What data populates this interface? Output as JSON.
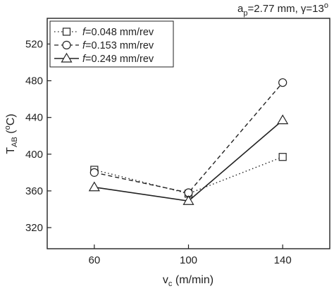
{
  "chart_data": {
    "type": "line",
    "annotation": {
      "a_main": "a",
      "a_sub": "p",
      "a_rest": "=2.77 mm, ",
      "gamma": "γ",
      "gamma_rest": "=13",
      "deg": "o"
    },
    "xlabel": {
      "main": "v",
      "sub": "c",
      "rest": " (m/min)"
    },
    "ylabel": {
      "main": "T",
      "sub": "AB",
      "open": " (",
      "deg": "o",
      "rest": "C)"
    },
    "x": [
      60,
      100,
      140
    ],
    "x_tick_labels": [
      "60",
      "100",
      "140"
    ],
    "xlim": [
      40,
      160
    ],
    "y_ticks": [
      320,
      360,
      400,
      440,
      480,
      520
    ],
    "y_tick_labels": [
      "320",
      "360",
      "400",
      "440",
      "480",
      "520"
    ],
    "ylim": [
      297,
      548
    ],
    "grid": false,
    "legend_position": "top-left",
    "series": [
      {
        "name": "f=0.048 mm/rev",
        "italic": "f",
        "rest": "=0.048 mm/rev",
        "values": [
          383,
          357,
          397
        ],
        "marker": "square",
        "line": "dotted",
        "color": "#222222"
      },
      {
        "name": "f=0.153 mm/rev",
        "italic": "f",
        "rest": "=0.153 mm/rev",
        "values": [
          380,
          358,
          478
        ],
        "marker": "circle",
        "line": "dashed",
        "color": "#222222"
      },
      {
        "name": "f=0.249 mm/rev",
        "italic": "f",
        "rest": "=0.249 mm/rev",
        "values": [
          364,
          349,
          437
        ],
        "marker": "triangle",
        "line": "solid",
        "color": "#222222"
      }
    ]
  }
}
